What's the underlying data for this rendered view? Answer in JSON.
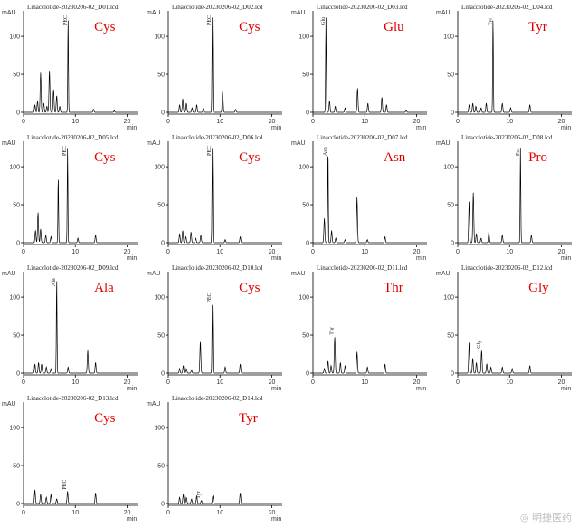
{
  "chart_data": [
    {
      "type": "line",
      "title": "Linacclotide-20230206-02_D01.lcd",
      "annotation": "Cys",
      "ylabel": "mAU",
      "xlabel": "min",
      "ylim": [
        0,
        125
      ],
      "yticks": [
        0,
        50,
        100
      ],
      "xlim": [
        0,
        22
      ],
      "xticks": [
        0,
        10,
        20
      ],
      "peaks": [
        {
          "x": 2.2,
          "y": 10
        },
        {
          "x": 2.7,
          "y": 15
        },
        {
          "x": 3.3,
          "y": 52
        },
        {
          "x": 3.9,
          "y": 12
        },
        {
          "x": 4.5,
          "y": 8
        },
        {
          "x": 5.0,
          "y": 55
        },
        {
          "x": 5.8,
          "y": 30
        },
        {
          "x": 6.4,
          "y": 22
        },
        {
          "x": 7.0,
          "y": 8
        },
        {
          "x": 8.6,
          "y": 125
        },
        {
          "x": 13.5,
          "y": 4
        },
        {
          "x": 17.5,
          "y": 2
        }
      ],
      "peak_labels": [
        {
          "x": 8.6,
          "text": "PEC"
        }
      ]
    },
    {
      "type": "line",
      "title": "Linacclotide-20230206-02_D02.lcd",
      "annotation": "Cys",
      "ylabel": "mAU",
      "xlabel": "min",
      "ylim": [
        0,
        125
      ],
      "yticks": [
        0,
        50,
        100
      ],
      "xlim": [
        0,
        22
      ],
      "xticks": [
        0,
        10,
        20
      ],
      "peaks": [
        {
          "x": 2.2,
          "y": 10
        },
        {
          "x": 2.8,
          "y": 18
        },
        {
          "x": 3.5,
          "y": 12
        },
        {
          "x": 4.6,
          "y": 6
        },
        {
          "x": 5.5,
          "y": 10
        },
        {
          "x": 6.8,
          "y": 5
        },
        {
          "x": 8.5,
          "y": 125
        },
        {
          "x": 10.5,
          "y": 28
        },
        {
          "x": 13.0,
          "y": 4
        }
      ],
      "peak_labels": [
        {
          "x": 8.5,
          "text": "PEC"
        }
      ]
    },
    {
      "type": "line",
      "title": "Linacclotide-20230206-02_D03.lcd",
      "annotation": "Glu",
      "ylabel": "mAU",
      "xlabel": "min",
      "ylim": [
        0,
        125
      ],
      "yticks": [
        0,
        50,
        100
      ],
      "xlim": [
        0,
        22
      ],
      "xticks": [
        0,
        10,
        20
      ],
      "peaks": [
        {
          "x": 2.5,
          "y": 125
        },
        {
          "x": 3.2,
          "y": 15
        },
        {
          "x": 4.3,
          "y": 8
        },
        {
          "x": 6.2,
          "y": 6
        },
        {
          "x": 8.6,
          "y": 32
        },
        {
          "x": 10.6,
          "y": 12
        },
        {
          "x": 13.3,
          "y": 20
        },
        {
          "x": 14.2,
          "y": 10
        },
        {
          "x": 18.0,
          "y": 3
        }
      ],
      "peak_labels": [
        {
          "x": 2.5,
          "text": "Glu"
        }
      ]
    },
    {
      "type": "line",
      "title": "Linacclotide-20230206-02_D04.lcd",
      "annotation": "Tyr",
      "ylabel": "mAU",
      "xlabel": "min",
      "ylim": [
        0,
        125
      ],
      "yticks": [
        0,
        50,
        100
      ],
      "xlim": [
        0,
        22
      ],
      "xticks": [
        0,
        10,
        20
      ],
      "peaks": [
        {
          "x": 2.2,
          "y": 10
        },
        {
          "x": 2.9,
          "y": 12
        },
        {
          "x": 3.5,
          "y": 8
        },
        {
          "x": 4.5,
          "y": 6
        },
        {
          "x": 5.5,
          "y": 12
        },
        {
          "x": 6.8,
          "y": 125
        },
        {
          "x": 8.6,
          "y": 12
        },
        {
          "x": 10.2,
          "y": 6
        },
        {
          "x": 13.9,
          "y": 10
        }
      ],
      "peak_labels": [
        {
          "x": 6.8,
          "text": "Tyr"
        }
      ]
    },
    {
      "type": "line",
      "title": "Linacclotide-20230206-02_D05.lcd",
      "annotation": "Cys",
      "ylabel": "mAU",
      "xlabel": "min",
      "ylim": [
        0,
        125
      ],
      "yticks": [
        0,
        50,
        100
      ],
      "xlim": [
        0,
        22
      ],
      "xticks": [
        0,
        10,
        20
      ],
      "peaks": [
        {
          "x": 2.3,
          "y": 16
        },
        {
          "x": 2.8,
          "y": 40
        },
        {
          "x": 3.3,
          "y": 18
        },
        {
          "x": 4.3,
          "y": 10
        },
        {
          "x": 5.3,
          "y": 8
        },
        {
          "x": 6.7,
          "y": 88
        },
        {
          "x": 8.5,
          "y": 125
        },
        {
          "x": 10.5,
          "y": 6
        },
        {
          "x": 13.9,
          "y": 10
        }
      ],
      "peak_labels": [
        {
          "x": 8.5,
          "text": "PEC"
        }
      ]
    },
    {
      "type": "line",
      "title": "Linacclotide-20230206-02_D06.lcd",
      "annotation": "Cys",
      "ylabel": "mAU",
      "xlabel": "min",
      "ylim": [
        0,
        125
      ],
      "yticks": [
        0,
        50,
        100
      ],
      "xlim": [
        0,
        22
      ],
      "xticks": [
        0,
        10,
        20
      ],
      "peaks": [
        {
          "x": 2.2,
          "y": 12
        },
        {
          "x": 2.8,
          "y": 16
        },
        {
          "x": 3.4,
          "y": 8
        },
        {
          "x": 4.4,
          "y": 14
        },
        {
          "x": 5.3,
          "y": 6
        },
        {
          "x": 6.3,
          "y": 10
        },
        {
          "x": 8.5,
          "y": 125
        },
        {
          "x": 11.0,
          "y": 4
        },
        {
          "x": 13.9,
          "y": 8
        }
      ],
      "peak_labels": [
        {
          "x": 8.5,
          "text": "PEC"
        }
      ]
    },
    {
      "type": "line",
      "title": "Linacclotide-20230206-02_D07.lcd",
      "annotation": "Asn",
      "ylabel": "mAU",
      "xlabel": "min",
      "ylim": [
        0,
        125
      ],
      "yticks": [
        0,
        50,
        100
      ],
      "xlim": [
        0,
        22
      ],
      "xticks": [
        0,
        10,
        20
      ],
      "peaks": [
        {
          "x": 2.2,
          "y": 32
        },
        {
          "x": 2.9,
          "y": 125
        },
        {
          "x": 3.6,
          "y": 16
        },
        {
          "x": 4.4,
          "y": 6
        },
        {
          "x": 6.2,
          "y": 4
        },
        {
          "x": 8.5,
          "y": 60
        },
        {
          "x": 10.5,
          "y": 4
        },
        {
          "x": 13.9,
          "y": 8
        }
      ],
      "peak_labels": [
        {
          "x": 2.9,
          "text": "Asn"
        }
      ]
    },
    {
      "type": "line",
      "title": "Linacclotide-20230206-02_D08.lcd",
      "annotation": "Pro",
      "ylabel": "mAU",
      "xlabel": "min",
      "ylim": [
        0,
        125
      ],
      "yticks": [
        0,
        50,
        100
      ],
      "xlim": [
        0,
        22
      ],
      "xticks": [
        0,
        10,
        20
      ],
      "peaks": [
        {
          "x": 2.2,
          "y": 54
        },
        {
          "x": 3.0,
          "y": 66
        },
        {
          "x": 3.6,
          "y": 12
        },
        {
          "x": 4.5,
          "y": 6
        },
        {
          "x": 6.0,
          "y": 14
        },
        {
          "x": 8.6,
          "y": 10
        },
        {
          "x": 12.1,
          "y": 125
        },
        {
          "x": 14.2,
          "y": 10
        }
      ],
      "peak_labels": [
        {
          "x": 12.1,
          "text": "Pro"
        }
      ]
    },
    {
      "type": "line",
      "title": "Linacclotide-20230206-02_D09.lcd",
      "annotation": "Ala",
      "ylabel": "mAU",
      "xlabel": "min",
      "ylim": [
        0,
        125
      ],
      "yticks": [
        0,
        50,
        100
      ],
      "xlim": [
        0,
        22
      ],
      "xticks": [
        0,
        10,
        20
      ],
      "peaks": [
        {
          "x": 2.2,
          "y": 12
        },
        {
          "x": 2.9,
          "y": 14
        },
        {
          "x": 3.5,
          "y": 12
        },
        {
          "x": 4.4,
          "y": 8
        },
        {
          "x": 5.3,
          "y": 6
        },
        {
          "x": 6.4,
          "y": 125
        },
        {
          "x": 8.6,
          "y": 8
        },
        {
          "x": 12.4,
          "y": 30
        },
        {
          "x": 13.9,
          "y": 14
        }
      ],
      "peak_labels": [
        {
          "x": 6.4,
          "text": "Ala"
        }
      ]
    },
    {
      "type": "line",
      "title": "Linacclotide-20230206-02_D10.lcd",
      "annotation": "Cys",
      "ylabel": "mAU",
      "xlabel": "min",
      "ylim": [
        0,
        125
      ],
      "yticks": [
        0,
        50,
        100
      ],
      "xlim": [
        0,
        22
      ],
      "xticks": [
        0,
        10,
        20
      ],
      "peaks": [
        {
          "x": 2.2,
          "y": 6
        },
        {
          "x": 2.9,
          "y": 10
        },
        {
          "x": 3.5,
          "y": 6
        },
        {
          "x": 4.5,
          "y": 4
        },
        {
          "x": 6.2,
          "y": 42
        },
        {
          "x": 8.5,
          "y": 90
        },
        {
          "x": 11.0,
          "y": 8
        },
        {
          "x": 13.9,
          "y": 12
        }
      ],
      "peak_labels": [
        {
          "x": 8.5,
          "text": "PEC"
        }
      ]
    },
    {
      "type": "line",
      "title": "Linacclotide-20230206-02_D11.lcd",
      "annotation": "Thr",
      "ylabel": "mAU",
      "xlabel": "min",
      "ylim": [
        0,
        125
      ],
      "yticks": [
        0,
        50,
        100
      ],
      "xlim": [
        0,
        22
      ],
      "xticks": [
        0,
        10,
        20
      ],
      "peaks": [
        {
          "x": 2.2,
          "y": 6
        },
        {
          "x": 2.9,
          "y": 16
        },
        {
          "x": 3.5,
          "y": 10
        },
        {
          "x": 4.2,
          "y": 48
        },
        {
          "x": 5.3,
          "y": 14
        },
        {
          "x": 6.2,
          "y": 10
        },
        {
          "x": 8.5,
          "y": 28
        },
        {
          "x": 10.5,
          "y": 8
        },
        {
          "x": 13.9,
          "y": 12
        }
      ],
      "peak_labels": [
        {
          "x": 4.2,
          "text": "Thr"
        }
      ]
    },
    {
      "type": "line",
      "title": "Linacclotide-20230206-02_D12.lcd",
      "annotation": "Gly",
      "ylabel": "mAU",
      "xlabel": "min",
      "ylim": [
        0,
        125
      ],
      "yticks": [
        0,
        50,
        100
      ],
      "xlim": [
        0,
        22
      ],
      "xticks": [
        0,
        10,
        20
      ],
      "peaks": [
        {
          "x": 2.2,
          "y": 40
        },
        {
          "x": 2.9,
          "y": 20
        },
        {
          "x": 3.6,
          "y": 14
        },
        {
          "x": 4.6,
          "y": 30
        },
        {
          "x": 5.6,
          "y": 12
        },
        {
          "x": 6.4,
          "y": 8
        },
        {
          "x": 8.6,
          "y": 8
        },
        {
          "x": 10.5,
          "y": 6
        },
        {
          "x": 13.9,
          "y": 10
        }
      ],
      "peak_labels": [
        {
          "x": 4.6,
          "text": "Gly"
        }
      ]
    },
    {
      "type": "line",
      "title": "Linacclotide-20230206-02_D13.lcd",
      "annotation": "Cys",
      "ylabel": "mAU",
      "xlabel": "min",
      "ylim": [
        0,
        125
      ],
      "yticks": [
        0,
        50,
        100
      ],
      "xlim": [
        0,
        22
      ],
      "xticks": [
        0,
        10,
        20
      ],
      "peaks": [
        {
          "x": 2.2,
          "y": 18
        },
        {
          "x": 3.3,
          "y": 12
        },
        {
          "x": 4.4,
          "y": 8
        },
        {
          "x": 5.3,
          "y": 12
        },
        {
          "x": 6.4,
          "y": 6
        },
        {
          "x": 8.5,
          "y": 16
        },
        {
          "x": 13.9,
          "y": 14
        }
      ],
      "peak_labels": [
        {
          "x": 8.5,
          "text": "PEC"
        }
      ]
    },
    {
      "type": "line",
      "title": "Linacclotide-20230206-02_D14.lcd",
      "annotation": "Tyr",
      "ylabel": "mAU",
      "xlabel": "min",
      "ylim": [
        0,
        125
      ],
      "yticks": [
        0,
        50,
        100
      ],
      "xlim": [
        0,
        22
      ],
      "xticks": [
        0,
        10,
        20
      ],
      "peaks": [
        {
          "x": 2.2,
          "y": 8
        },
        {
          "x": 2.9,
          "y": 12
        },
        {
          "x": 3.5,
          "y": 8
        },
        {
          "x": 4.5,
          "y": 6
        },
        {
          "x": 5.5,
          "y": 10
        },
        {
          "x": 6.4,
          "y": 4
        },
        {
          "x": 8.6,
          "y": 10
        },
        {
          "x": 13.9,
          "y": 14
        }
      ],
      "peak_labels": [
        {
          "x": 6.4,
          "text": "Tyr"
        }
      ]
    }
  ],
  "watermark": "◎ 明捷医药"
}
